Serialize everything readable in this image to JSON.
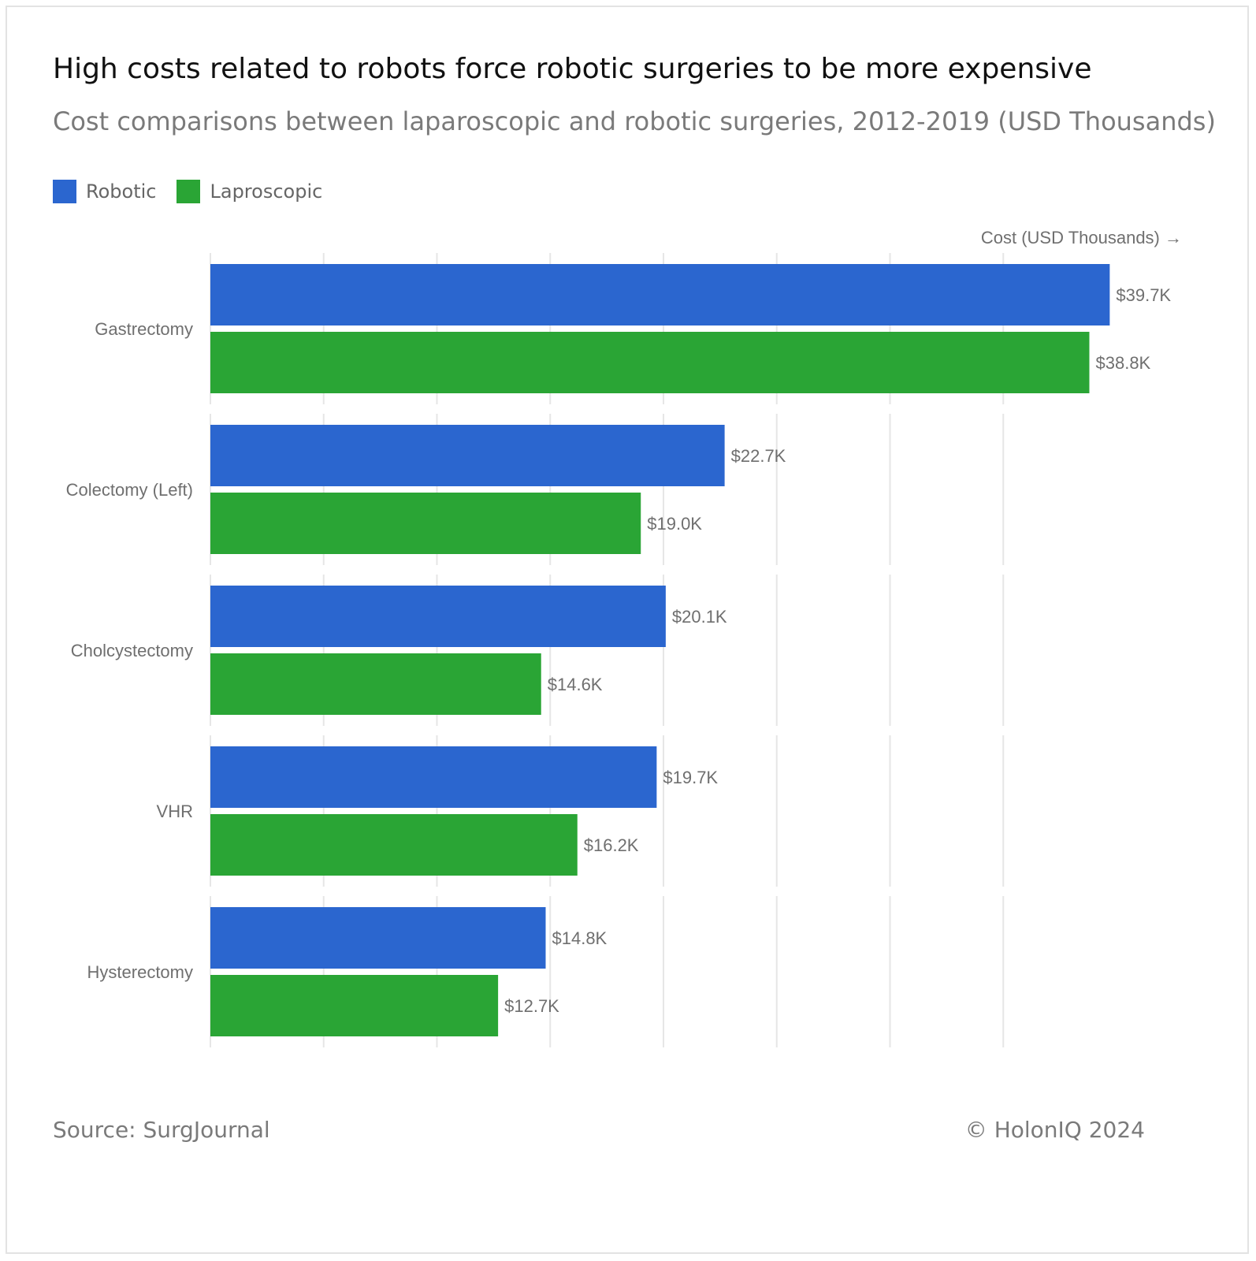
{
  "header": {
    "title": "High costs related to robots force robotic surgeries to be more expensive",
    "subtitle": "Cost comparisons between laparoscopic and robotic surgeries, 2012-2019 (USD Thousands)"
  },
  "footer": {
    "source": "Source: SurgJournal",
    "copyright": "© HolonIQ 2024"
  },
  "colors": {
    "robotic": "#2b66cf",
    "laparoscopic": "#2aa535",
    "grid": "#e6e6e6",
    "label": "#6f6f6f"
  },
  "chart_data": {
    "type": "bar",
    "orientation": "horizontal",
    "title": "High costs related to robots force robotic surgeries to be more expensive",
    "subtitle": "Cost comparisons between laparoscopic and robotic surgeries, 2012-2019 (USD Thousands)",
    "xlabel": "Cost (USD Thousands) →",
    "ylabel": "",
    "xlim": [
      0,
      40
    ],
    "grid": true,
    "legend_position": "top-left",
    "categories": [
      "Gastrectomy",
      "Colectomy (Left)",
      "Cholcystectomy",
      "VHR",
      "Hysterectomy"
    ],
    "series": [
      {
        "name": "Robotic",
        "values": [
          39.7,
          22.7,
          20.1,
          19.7,
          14.8
        ],
        "labels": [
          "$39.7K",
          "$22.7K",
          "$20.1K",
          "$19.7K",
          "$14.8K"
        ]
      },
      {
        "name": "Laproscopic",
        "values": [
          38.8,
          19.0,
          14.6,
          16.2,
          12.7
        ],
        "labels": [
          "$38.8K",
          "$19.0K",
          "$14.6K",
          "$16.2K",
          "$12.7K"
        ]
      }
    ]
  }
}
